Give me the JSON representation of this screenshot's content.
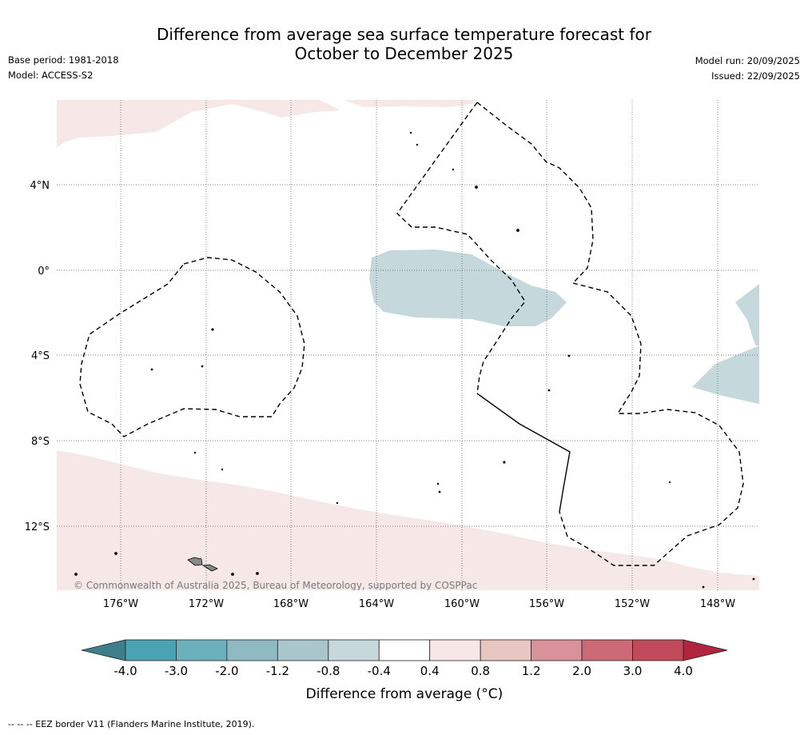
{
  "header": {
    "title": "Difference from average sea surface temperature forecast for\nOctober to December 2025",
    "base_period": "Base period: 1981-2018",
    "model": "Model: ACCESS-S2",
    "model_run": "Model run: 20/09/2025",
    "issued": "Issued: 22/09/2025"
  },
  "map": {
    "lat_labels": [
      "4°N",
      "0°",
      "4°S",
      "8°S",
      "12°S"
    ],
    "lon_labels": [
      "176°W",
      "172°W",
      "168°W",
      "164°W",
      "160°W",
      "156°W",
      "152°W",
      "148°W"
    ],
    "copyright": "© Commonwealth of Australia 2025, Bureau of Meteorology, supported by COSPPac"
  },
  "colorbar": {
    "ticks": [
      "-4.0",
      "-3.0",
      "-2.0",
      "-1.2",
      "-0.8",
      "-0.4",
      "0.4",
      "0.8",
      "1.2",
      "2.0",
      "3.0",
      "4.0"
    ],
    "colors": [
      "#4aa3b3",
      "#6cb0bd",
      "#8fbac4",
      "#aac6cd",
      "#c7d8dc",
      "#ffffff",
      "#f5e8e7",
      "#e8c6c2",
      "#d9919a",
      "#cd6a78",
      "#c04a5a"
    ],
    "low_color": "#3c7f8a",
    "high_color": "#b0243f",
    "title": "Difference from average (°C)"
  },
  "footer": {
    "legend": "--  --  -- EEZ border V11 (Flanders Marine Institute, 2019)."
  }
}
